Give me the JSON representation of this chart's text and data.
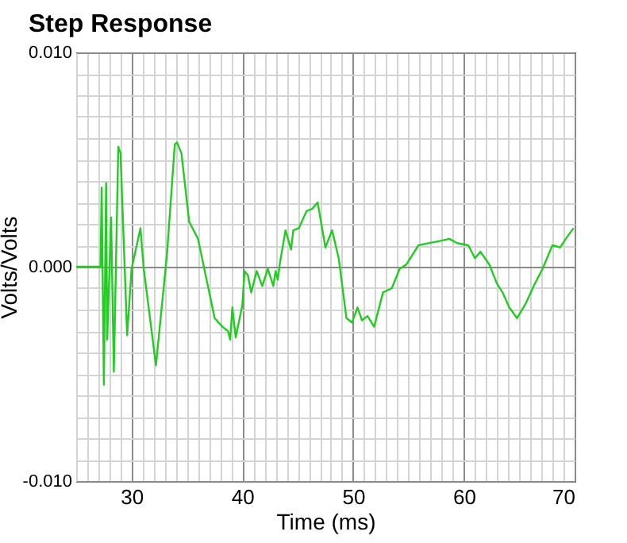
{
  "chart_data": {
    "type": "line",
    "title": "Step Response",
    "xlabel": "Time (ms)",
    "ylabel": "Volts/Volts",
    "xlim": [
      25,
      70
    ],
    "ylim": [
      -0.01,
      0.01
    ],
    "xticks": [
      {
        "value": 25,
        "label": null
      },
      {
        "value": 26,
        "label": null
      },
      {
        "value": 27,
        "label": null
      },
      {
        "value": 28,
        "label": null
      },
      {
        "value": 29,
        "label": null
      },
      30,
      {
        "value": 31,
        "label": null
      },
      {
        "value": 32,
        "label": null
      },
      {
        "value": 33,
        "label": null
      },
      {
        "value": 34,
        "label": null
      },
      {
        "value": 35,
        "label": null
      },
      {
        "value": 36,
        "label": null
      },
      {
        "value": 37,
        "label": null
      },
      {
        "value": 38,
        "label": null
      },
      {
        "value": 39,
        "label": null
      },
      40,
      {
        "value": 41,
        "label": null
      },
      {
        "value": 42,
        "label": null
      },
      {
        "value": 43,
        "label": null
      },
      {
        "value": 44,
        "label": null
      },
      {
        "value": 45,
        "label": null
      },
      {
        "value": 46,
        "label": null
      },
      {
        "value": 47,
        "label": null
      },
      {
        "value": 48,
        "label": null
      },
      {
        "value": 49,
        "label": null
      },
      50,
      {
        "value": 51,
        "label": null
      },
      {
        "value": 52,
        "label": null
      },
      {
        "value": 53,
        "label": null
      },
      {
        "value": 54,
        "label": null
      },
      {
        "value": 55,
        "label": null
      },
      {
        "value": 56,
        "label": null
      },
      {
        "value": 57,
        "label": null
      },
      {
        "value": 58,
        "label": null
      },
      {
        "value": 59,
        "label": null
      },
      60,
      {
        "value": 61,
        "label": null
      },
      {
        "value": 62,
        "label": null
      },
      {
        "value": 63,
        "label": null
      },
      {
        "value": 64,
        "label": null
      },
      {
        "value": 65,
        "label": null
      },
      {
        "value": 66,
        "label": null
      },
      {
        "value": 67,
        "label": null
      },
      {
        "value": 68,
        "label": null
      },
      {
        "value": 69,
        "label": null
      },
      70
    ],
    "yticks": [
      {
        "value": -0.01,
        "label": "-0.010"
      },
      {
        "value": -0.009,
        "label": null
      },
      {
        "value": -0.008,
        "label": null
      },
      {
        "value": -0.007,
        "label": null
      },
      {
        "value": -0.006,
        "label": null
      },
      {
        "value": -0.005,
        "label": null
      },
      {
        "value": -0.004,
        "label": null
      },
      {
        "value": -0.003,
        "label": null
      },
      {
        "value": -0.002,
        "label": null
      },
      {
        "value": -0.001,
        "label": null
      },
      {
        "value": 0,
        "label": "0.000"
      },
      {
        "value": 0.001,
        "label": null
      },
      {
        "value": 0.002,
        "label": null
      },
      {
        "value": 0.003,
        "label": null
      },
      {
        "value": 0.004,
        "label": null
      },
      {
        "value": 0.005,
        "label": null
      },
      {
        "value": 0.006,
        "label": null
      },
      {
        "value": 0.007,
        "label": null
      },
      {
        "value": 0.008,
        "label": null
      },
      {
        "value": 0.009,
        "label": null
      },
      {
        "value": 0.01,
        "label": "0.010"
      }
    ],
    "grid": true,
    "series": [
      {
        "color": "#22cc22",
        "x": [
          25,
          27.2,
          27.3,
          27.5,
          27.7,
          27.8,
          28.15,
          28.4,
          28.8,
          29.0,
          29.6,
          30.0,
          30.8,
          31.1,
          32.2,
          33.2,
          33.9,
          34.1,
          34.5,
          35.2,
          36.0,
          37.5,
          38.2,
          38.7,
          38.9,
          39.1,
          39.4,
          39.6,
          40.0,
          40.2,
          40.5,
          40.8,
          41.3,
          41.8,
          42.3,
          42.8,
          43.0,
          43.2,
          43.4,
          43.9,
          44.4,
          44.6,
          45.1,
          45.8,
          46.3,
          46.8,
          47.5,
          48.1,
          48.7,
          49.4,
          49.9,
          50.4,
          50.8,
          51.3,
          51.9,
          52.7,
          53.5,
          54.2,
          54.8,
          55.9,
          56.8,
          57.8,
          58.7,
          59.4,
          60.4,
          61.0,
          61.5,
          62.3,
          63.0,
          63.5,
          64.1,
          64.8,
          65.6,
          66.4,
          67.1,
          68.0,
          68.7,
          69.2,
          69.9
        ],
        "values": [
          0,
          0,
          0.0037,
          -0.0055,
          0.0039,
          -0.0034,
          0.0023,
          -0.0049,
          0.0056,
          0.0053,
          -0.0032,
          -0.0001,
          0.0018,
          -0.0001,
          -0.0046,
          0.0006,
          0.0057,
          0.0058,
          0.0053,
          0.0021,
          0.0013,
          -0.0024,
          -0.0028,
          -0.003,
          -0.0034,
          -0.0019,
          -0.0033,
          -0.0028,
          -0.0018,
          -0.0002,
          -0.0004,
          -0.0012,
          -0.0002,
          -0.0009,
          -0.0001,
          -0.0009,
          -0.0002,
          -0.0006,
          0.0002,
          0.0017,
          0.0008,
          0.0017,
          0.0018,
          0.0026,
          0.0027,
          0.003,
          0.0009,
          0.0017,
          0.0004,
          -0.0024,
          -0.0026,
          -0.0019,
          -0.0025,
          -0.0023,
          -0.0028,
          -0.0012,
          -0.001,
          -0.0001,
          0.0001,
          0.001,
          0.0011,
          0.0012,
          0.0013,
          0.0011,
          0.001,
          0.0004,
          0.0007,
          0.0001,
          -0.0008,
          -0.0012,
          -0.0019,
          -0.0024,
          -0.0017,
          -0.0008,
          -0.0001,
          0.001,
          0.0009,
          0.0013,
          0.0018
        ]
      }
    ]
  }
}
